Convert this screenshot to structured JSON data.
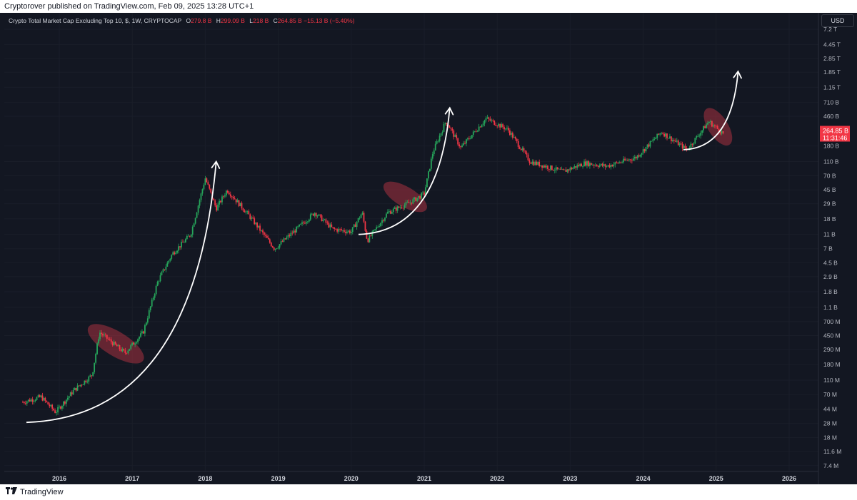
{
  "header": {
    "publisher_line": "Cryptorover published on TradingView.com, Feb 09, 2025 13:28 UTC+1"
  },
  "legend": {
    "title": "Crypto Total Market Cap Excluding Top 10, $, 1W, CRYPTOCAP",
    "o_label": "O",
    "o_value": "279.8 B",
    "h_label": "H",
    "h_value": "299.09 B",
    "l_label": "L",
    "l_value": "218 B",
    "c_label": "C",
    "c_value": "264.85 B",
    "change": "−15.13 B (−5.40%)"
  },
  "currency": "USD",
  "price_label": {
    "value": "264.85 B",
    "countdown": "11:31:46"
  },
  "footer": {
    "brand": "TradingView"
  },
  "colors": {
    "background": "#131722",
    "up": "#26a65b",
    "down": "#f23645",
    "highlight": "#a8323f",
    "arrow": "#ffffff"
  },
  "chart_data": {
    "type": "candlestick",
    "title": "Crypto Total Market Cap Excluding Top 10, $, 1W, CRYPTOCAP",
    "y_scale": "log",
    "y_unit": "USD",
    "x_ticks": [
      "2016",
      "2017",
      "2018",
      "2019",
      "2020",
      "2021",
      "2022",
      "2023",
      "2024",
      "2025",
      "2026"
    ],
    "y_ticks": [
      {
        "label": "7.2 T",
        "value": 7200000000000.0
      },
      {
        "label": "4.45 T",
        "value": 4450000000000.0
      },
      {
        "label": "2.85 T",
        "value": 2850000000000.0
      },
      {
        "label": "1.85 T",
        "value": 1850000000000.0
      },
      {
        "label": "1.15 T",
        "value": 1150000000000.0
      },
      {
        "label": "710 B",
        "value": 710000000000.0
      },
      {
        "label": "460 B",
        "value": 460000000000.0
      },
      {
        "label": "180 B",
        "value": 180000000000.0
      },
      {
        "label": "110 B",
        "value": 110000000000.0
      },
      {
        "label": "70 B",
        "value": 70000000000.0
      },
      {
        "label": "45 B",
        "value": 45000000000.0
      },
      {
        "label": "29 B",
        "value": 29000000000.0
      },
      {
        "label": "18 B",
        "value": 18000000000.0
      },
      {
        "label": "11 B",
        "value": 11000000000.0
      },
      {
        "label": "7 B",
        "value": 7000000000.0
      },
      {
        "label": "4.5 B",
        "value": 4500000000.0
      },
      {
        "label": "2.9 B",
        "value": 2900000000.0
      },
      {
        "label": "1.8 B",
        "value": 1800000000.0
      },
      {
        "label": "1.1 B",
        "value": 1100000000.0
      },
      {
        "label": "700 M",
        "value": 700000000.0
      },
      {
        "label": "450 M",
        "value": 450000000.0
      },
      {
        "label": "290 M",
        "value": 290000000.0
      },
      {
        "label": "180 M",
        "value": 180000000.0
      },
      {
        "label": "110 M",
        "value": 110000000.0
      },
      {
        "label": "70 M",
        "value": 70000000.0
      },
      {
        "label": "44 M",
        "value": 44000000.0
      },
      {
        "label": "28 M",
        "value": 28000000.0
      },
      {
        "label": "18 M",
        "value": 18000000.0
      },
      {
        "label": "11.6 M",
        "value": 11600000.0
      },
      {
        "label": "7.4 M",
        "value": 7400000.0
      }
    ],
    "series_path": [
      {
        "t": 2015.5,
        "v": 55000000.0
      },
      {
        "t": 2015.75,
        "v": 65000000.0
      },
      {
        "t": 2015.95,
        "v": 40000000.0
      },
      {
        "t": 2016.2,
        "v": 80000000.0
      },
      {
        "t": 2016.45,
        "v": 130000000.0
      },
      {
        "t": 2016.55,
        "v": 500000000.0
      },
      {
        "t": 2016.9,
        "v": 260000000.0
      },
      {
        "t": 2017.15,
        "v": 500000000.0
      },
      {
        "t": 2017.35,
        "v": 2500000000.0
      },
      {
        "t": 2017.55,
        "v": 6000000000.0
      },
      {
        "t": 2017.8,
        "v": 11000000000.0
      },
      {
        "t": 2018.0,
        "v": 65000000000.0
      },
      {
        "t": 2018.15,
        "v": 25000000000.0
      },
      {
        "t": 2018.3,
        "v": 45000000000.0
      },
      {
        "t": 2018.6,
        "v": 20000000000.0
      },
      {
        "t": 2018.95,
        "v": 7000000000.0
      },
      {
        "t": 2019.25,
        "v": 13000000000.0
      },
      {
        "t": 2019.5,
        "v": 22000000000.0
      },
      {
        "t": 2019.75,
        "v": 13000000000.0
      },
      {
        "t": 2020.0,
        "v": 12000000000.0
      },
      {
        "t": 2020.15,
        "v": 22000000000.0
      },
      {
        "t": 2020.22,
        "v": 9000000000.0
      },
      {
        "t": 2020.5,
        "v": 22000000000.0
      },
      {
        "t": 2020.8,
        "v": 30000000000.0
      },
      {
        "t": 2021.0,
        "v": 40000000000.0
      },
      {
        "t": 2021.12,
        "v": 150000000000.0
      },
      {
        "t": 2021.3,
        "v": 400000000000.0
      },
      {
        "t": 2021.5,
        "v": 170000000000.0
      },
      {
        "t": 2021.85,
        "v": 430000000000.0
      },
      {
        "t": 2022.15,
        "v": 300000000000.0
      },
      {
        "t": 2022.45,
        "v": 110000000000.0
      },
      {
        "t": 2022.9,
        "v": 80000000000.0
      },
      {
        "t": 2023.2,
        "v": 105000000000.0
      },
      {
        "t": 2023.5,
        "v": 95000000000.0
      },
      {
        "t": 2023.9,
        "v": 125000000000.0
      },
      {
        "t": 2024.25,
        "v": 280000000000.0
      },
      {
        "t": 2024.6,
        "v": 160000000000.0
      },
      {
        "t": 2024.9,
        "v": 390000000000.0
      },
      {
        "t": 2025.1,
        "v": 264850000000.0
      }
    ],
    "highlight_zones": [
      {
        "t_start": 2016.45,
        "t_end": 2017.1,
        "v_high": 550000000.0,
        "v_low": 220000000.0
      },
      {
        "t_start": 2020.5,
        "t_end": 2020.98,
        "v_high": 50000000000.0,
        "v_low": 26000000000.0
      },
      {
        "t_start": 2024.9,
        "t_end": 2025.15,
        "v_high": 520000000000.0,
        "v_low": 210000000000.0
      }
    ],
    "projection_arrows": [
      {
        "from": {
          "t": 2015.55,
          "v": 29000000.0
        },
        "to": {
          "t": 2018.15,
          "v": 110000000000.0
        }
      },
      {
        "from": {
          "t": 2020.1,
          "v": 11000000000.0
        },
        "to": {
          "t": 2021.35,
          "v": 600000000000.0
        }
      },
      {
        "from": {
          "t": 2024.55,
          "v": 160000000000.0
        },
        "to": {
          "t": 2025.3,
          "v": 1900000000000.0
        }
      }
    ],
    "last_price": {
      "value": 264850000000.0,
      "label": "264.85 B"
    }
  }
}
